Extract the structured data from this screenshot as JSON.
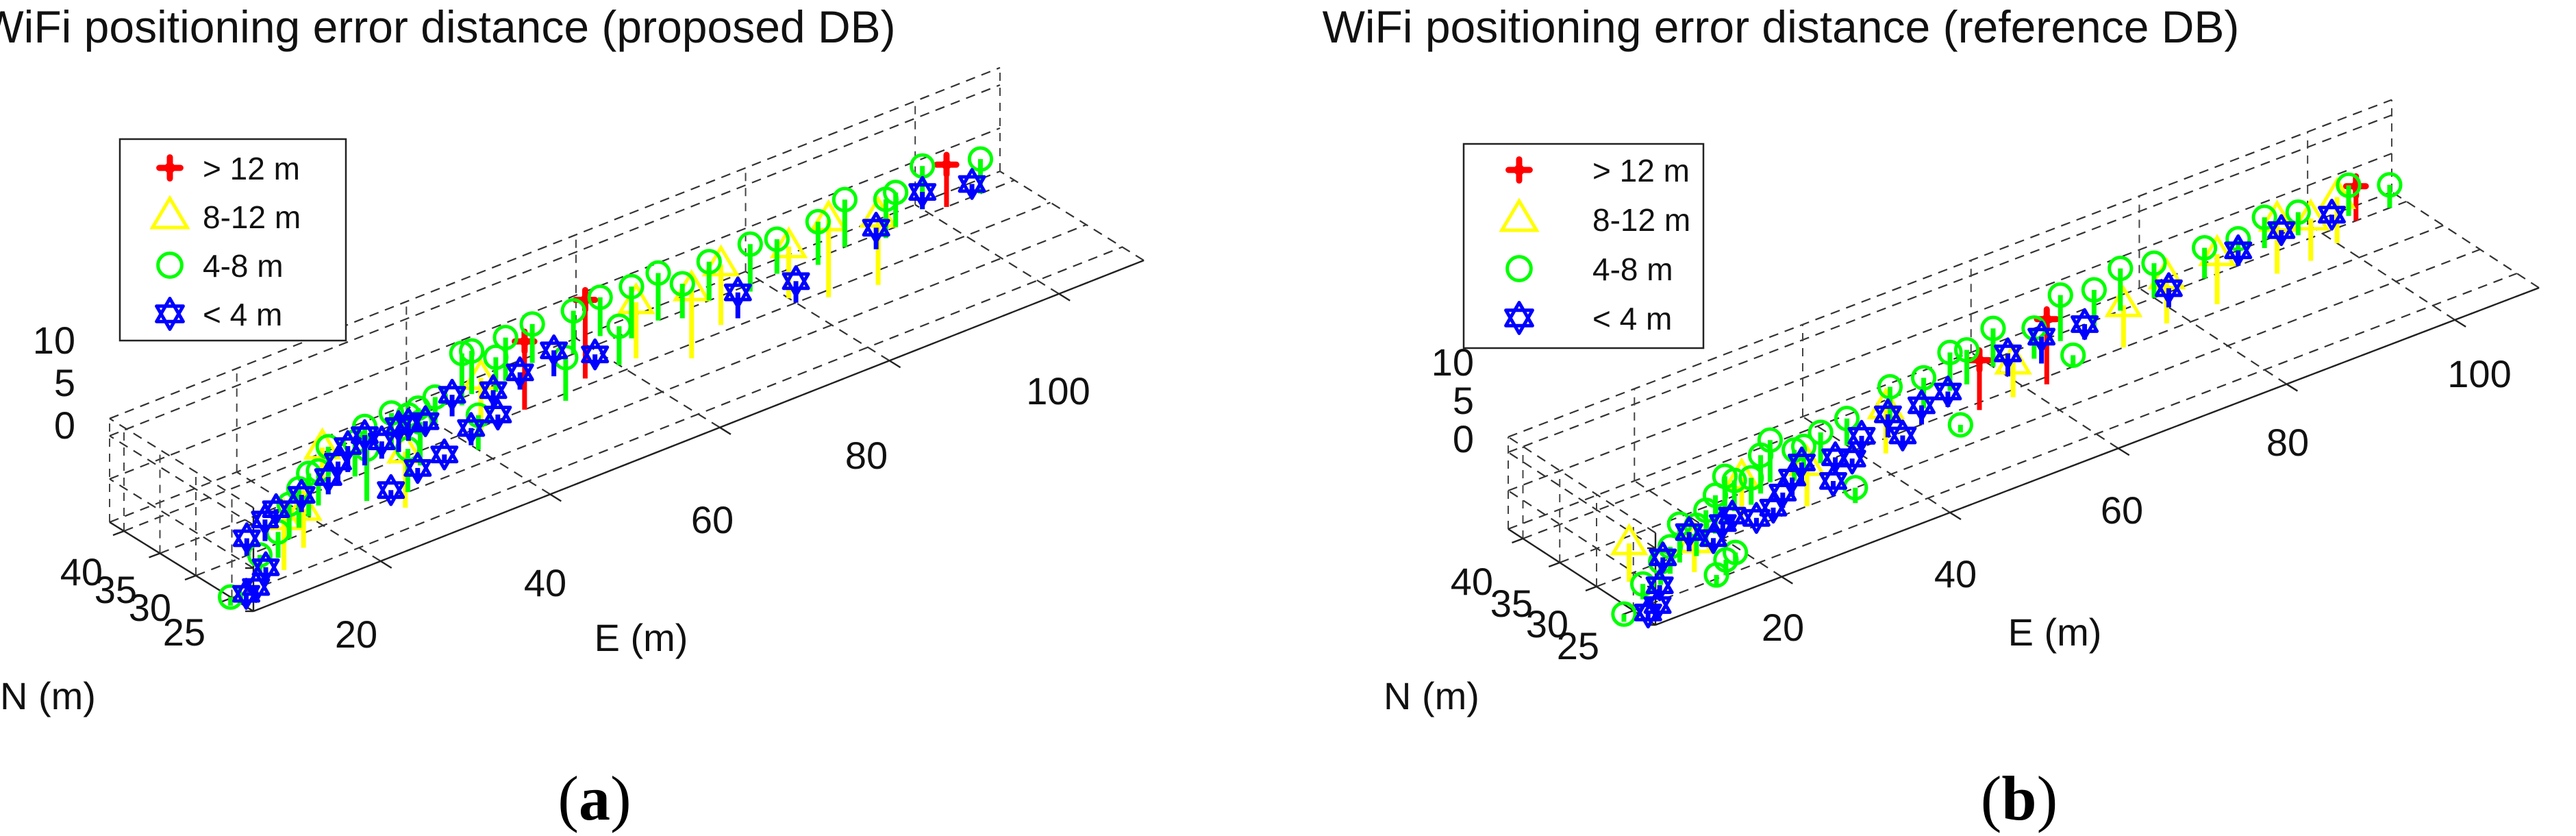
{
  "figure": {
    "panels": [
      {
        "label_letter": "a",
        "paren_open": "(",
        "paren_close": ")"
      },
      {
        "label_letter": "b",
        "paren_open": "(",
        "paren_close": ")"
      }
    ]
  },
  "chart_data": [
    {
      "type": "scatter",
      "subtype": "3d-stem",
      "title": "WiFi positioning error distance (proposed DB)",
      "xlabel": "E (m)",
      "ylabel": "N (m)",
      "zlabel": "",
      "x_ticks": [
        "20",
        "40",
        "60",
        "80",
        "100"
      ],
      "y_ticks": [
        "25",
        "30",
        "35",
        "40"
      ],
      "z_ticks": [
        "0",
        "5",
        "10"
      ],
      "xlim": [
        5,
        110
      ],
      "ylim": [
        22,
        42
      ],
      "zlim": [
        0,
        12
      ],
      "legend_position": "top-left",
      "legend": [
        {
          "label": "> 12 m",
          "color": "#ff0000",
          "marker": "plus"
        },
        {
          "label": "8-12 m",
          "color": "#ffff00",
          "marker": "triangle"
        },
        {
          "label": "4-8 m",
          "color": "#00ff00",
          "marker": "circle"
        },
        {
          "label": "< 4 m",
          "color": "#0000ff",
          "marker": "star"
        }
      ],
      "series": [
        {
          "name": "> 12 m",
          "points": [
            [
              48,
              35,
              7.9
            ],
            [
              56,
              36,
              9.1
            ],
            [
              102,
              40,
              4.9
            ]
          ]
        },
        {
          "name": "8-12 m",
          "points": [
            [
              12,
              26,
              6.0
            ],
            [
              16,
              28,
              4.5
            ],
            [
              25,
              36,
              4.0
            ],
            [
              28,
              28,
              6.5
            ],
            [
              42,
              34,
              6.5
            ],
            [
              62,
              36,
              6.5
            ],
            [
              66,
              33,
              8.0
            ],
            [
              72,
              36,
              7.0
            ],
            [
              80,
              36,
              6.0
            ],
            [
              83,
              34,
              9.0
            ],
            [
              88,
              33,
              8.0
            ]
          ]
        },
        {
          "name": "4-8 m",
          "points": [
            [
              4,
              24,
              1.0
            ],
            [
              10,
              27,
              2.0
            ],
            [
              13,
              28,
              3.0
            ],
            [
              16,
              30,
              4.0
            ],
            [
              18,
              31,
              4.5
            ],
            [
              20,
              32,
              5.0
            ],
            [
              22,
              33,
              4.0
            ],
            [
              24,
              34,
              5.5
            ],
            [
              28,
              35,
              4.0
            ],
            [
              30,
              36,
              4.5
            ],
            [
              34,
              37,
              4.0
            ],
            [
              36,
              37,
              3.0
            ],
            [
              38,
              38,
              2.5
            ],
            [
              40,
              38,
              3.0
            ],
            [
              44,
              39,
              6.0
            ],
            [
              46,
              40,
              5.0
            ],
            [
              48,
              39,
              4.0
            ],
            [
              50,
              40,
              5.0
            ],
            [
              54,
              41,
              4.5
            ],
            [
              58,
              40,
              5.0
            ],
            [
              62,
              41,
              4.5
            ],
            [
              64,
              39,
              6.0
            ],
            [
              68,
              40,
              5.5
            ],
            [
              70,
              39,
              4.0
            ],
            [
              74,
              40,
              4.5
            ],
            [
              78,
              39,
              5.5
            ],
            [
              82,
              40,
              4.0
            ],
            [
              86,
              39,
              5.0
            ],
            [
              90,
              40,
              5.5
            ],
            [
              94,
              39,
              4.5
            ],
            [
              96,
              40,
              4.0
            ],
            [
              100,
              41,
              5.0
            ],
            [
              106,
              40,
              4.0
            ],
            [
              30,
              30,
              5.0
            ],
            [
              26,
              31,
              6.0
            ],
            [
              34,
              33,
              5.0
            ],
            [
              40,
              32,
              4.0
            ],
            [
              52,
              34,
              5.0
            ],
            [
              60,
              36,
              4.5
            ]
          ]
        },
        {
          "name": "< 4 m",
          "points": [
            [
              5,
              23,
              1.5
            ],
            [
              7,
              24,
              1.0
            ],
            [
              9,
              25,
              2.0
            ],
            [
              11,
              30,
              2.0
            ],
            [
              14,
              31,
              2.5
            ],
            [
              17,
              33,
              1.5
            ],
            [
              20,
              33,
              2.0
            ],
            [
              24,
              34,
              2.0
            ],
            [
              26,
              35,
              2.5
            ],
            [
              28,
              36,
              3.0
            ],
            [
              30,
              36,
              3.5
            ],
            [
              32,
              36,
              2.0
            ],
            [
              34,
              36,
              3.0
            ],
            [
              36,
              37,
              2.0
            ],
            [
              38,
              37,
              1.5
            ],
            [
              42,
              38,
              2.5
            ],
            [
              46,
              37,
              2.0
            ],
            [
              50,
              38,
              2.0
            ],
            [
              54,
              38,
              3.0
            ],
            [
              58,
              37,
              1.5
            ],
            [
              74,
              36,
              3.0
            ],
            [
              80,
              35,
              2.5
            ],
            [
              92,
              38,
              2.5
            ],
            [
              100,
              41,
              2.0
            ],
            [
              105,
              40,
              1.5
            ],
            [
              28,
              30,
              1.0
            ],
            [
              32,
              31,
              1.5
            ],
            [
              36,
              32,
              1.0
            ],
            [
              40,
              33,
              2.0
            ],
            [
              44,
              34,
              1.5
            ]
          ]
        }
      ]
    },
    {
      "type": "scatter",
      "subtype": "3d-stem",
      "title": "WiFi positioning error distance (reference DB)",
      "xlabel": "E (m)",
      "ylabel": "N (m)",
      "zlabel": "",
      "x_ticks": [
        "20",
        "40",
        "60",
        "80",
        "100"
      ],
      "y_ticks": [
        "25",
        "30",
        "35",
        "40"
      ],
      "z_ticks": [
        "0",
        "5",
        "10"
      ],
      "xlim": [
        5,
        110
      ],
      "ylim": [
        22,
        42
      ],
      "zlim": [
        0,
        12
      ],
      "legend_position": "top-left",
      "legend": [
        {
          "label": "> 12 m",
          "color": "#ff0000",
          "marker": "plus"
        },
        {
          "label": "8-12 m",
          "color": "#ffff00",
          "marker": "triangle"
        },
        {
          "label": "4-8 m",
          "color": "#00ff00",
          "marker": "circle"
        },
        {
          "label": "< 4 m",
          "color": "#0000ff",
          "marker": "star"
        }
      ],
      "series": [
        {
          "name": "> 12 m",
          "points": [
            [
              54,
              34,
              6.5
            ],
            [
              62,
              34,
              8.5
            ],
            [
              104,
              40,
              4.5
            ]
          ]
        },
        {
          "name": "8-12 m",
          "points": [
            [
              8,
              29,
              5.0
            ],
            [
              14,
              27,
              4.0
            ],
            [
              24,
              32,
              5.0
            ],
            [
              30,
              30,
              5.5
            ],
            [
              42,
              33,
              6.0
            ],
            [
              58,
              34,
              4.5
            ],
            [
              72,
              35,
              5.5
            ],
            [
              78,
              36,
              6.0
            ],
            [
              84,
              36,
              6.5
            ],
            [
              92,
              37,
              7.0
            ],
            [
              96,
              37,
              5.5
            ],
            [
              100,
              38,
              6.0
            ]
          ]
        },
        {
          "name": "4-8 m",
          "points": [
            [
              3,
              24,
              1.0
            ],
            [
              7,
              26,
              2.0
            ],
            [
              10,
              27,
              3.0
            ],
            [
              12,
              28,
              3.5
            ],
            [
              14,
              29,
              5.0
            ],
            [
              16,
              29,
              4.0
            ],
            [
              18,
              30,
              4.5
            ],
            [
              20,
              31,
              5.0
            ],
            [
              22,
              32,
              6.0
            ],
            [
              24,
              33,
              4.0
            ],
            [
              26,
              33,
              3.5
            ],
            [
              28,
              34,
              5.0
            ],
            [
              30,
              35,
              5.5
            ],
            [
              32,
              34,
              4.0
            ],
            [
              34,
              35,
              3.0
            ],
            [
              36,
              35,
              4.0
            ],
            [
              40,
              36,
              3.5
            ],
            [
              46,
              37,
              4.5
            ],
            [
              50,
              37,
              4.0
            ],
            [
              54,
              38,
              5.0
            ],
            [
              56,
              38,
              4.5
            ],
            [
              60,
              39,
              5.0
            ],
            [
              64,
              38,
              4.0
            ],
            [
              68,
              39,
              6.0
            ],
            [
              72,
              39,
              5.0
            ],
            [
              76,
              40,
              5.5
            ],
            [
              80,
              40,
              4.5
            ],
            [
              86,
              40,
              4.0
            ],
            [
              90,
              40,
              3.5
            ],
            [
              94,
              41,
              4.0
            ],
            [
              98,
              41,
              3.0
            ],
            [
              104,
              41,
              4.0
            ],
            [
              108,
              40,
              3.0
            ],
            [
              14,
              24,
              1.5
            ],
            [
              16,
              25,
              2.0
            ],
            [
              18,
              26,
              1.5
            ],
            [
              34,
              28,
              2.0
            ],
            [
              50,
              32,
              1.0
            ],
            [
              66,
              35,
              1.5
            ]
          ]
        },
        {
          "name": "< 4 m",
          "points": [
            [
              5,
              23,
              1.0
            ],
            [
              7,
              24,
              0.5
            ],
            [
              9,
              26,
              1.0
            ],
            [
              12,
              29,
              1.5
            ],
            [
              16,
              30,
              2.5
            ],
            [
              18,
              29,
              1.5
            ],
            [
              20,
              30,
              2.0
            ],
            [
              22,
              31,
              1.5
            ],
            [
              24,
              30,
              1.0
            ],
            [
              28,
              31,
              2.0
            ],
            [
              30,
              32,
              2.5
            ],
            [
              32,
              33,
              3.0
            ],
            [
              36,
              33,
              2.0
            ],
            [
              40,
              34,
              2.5
            ],
            [
              44,
              35,
              3.0
            ],
            [
              48,
              35,
              2.5
            ],
            [
              52,
              36,
              2.0
            ],
            [
              60,
              37,
              3.0
            ],
            [
              64,
              37,
              3.5
            ],
            [
              70,
              38,
              2.0
            ],
            [
              80,
              38,
              2.5
            ],
            [
              90,
              40,
              2.0
            ],
            [
              96,
              41,
              1.5
            ],
            [
              102,
              41,
              1.0
            ],
            [
              26,
              30,
              1.5
            ],
            [
              34,
              31,
              1.0
            ],
            [
              38,
              33,
              1.0
            ],
            [
              44,
              33,
              1.5
            ]
          ]
        }
      ]
    }
  ]
}
